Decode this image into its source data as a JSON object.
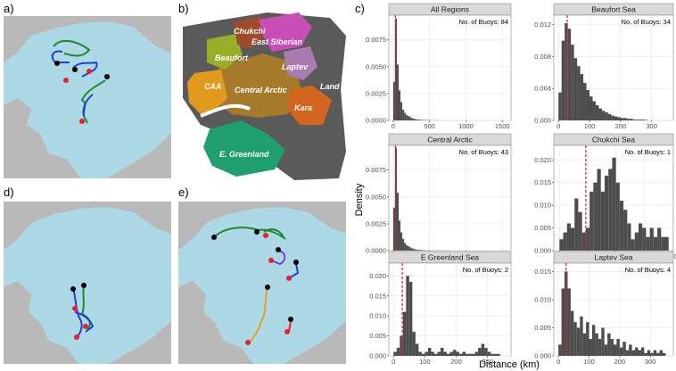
{
  "panel_labels": {
    "a": "a)",
    "b": "b)",
    "c": "c)",
    "d": "d)",
    "e": "e)"
  },
  "region_map": {
    "labels": {
      "chukchi": "Chukchi",
      "east_siberian": "East Siberian",
      "beaufort": "Beaufort",
      "laptev": "Laptev",
      "caa": "CAA",
      "central_arctic": "Central Arctic",
      "land": "Land",
      "kara": "Kara",
      "e_greenland": "E. Greenland"
    },
    "colors": {
      "chukchi": "#a04a2c",
      "east_siberian": "#c84fb5",
      "beaufort": "#9aae2a",
      "laptev": "#a97bb0",
      "caa": "#e09a1e",
      "central_arctic": "#a57a2a",
      "kara": "#d2661e",
      "e_greenland": "#1f9e6e",
      "land": "#5a5a5a"
    }
  },
  "map_colors": {
    "ocean": "#add8e6",
    "land": "#b9b9b9",
    "start": "#000000",
    "end": "#e8202a"
  },
  "track_colors": [
    "#1f3fd6",
    "#1a8a2a",
    "#7b3fd0",
    "#e6a02a"
  ],
  "chart_data": {
    "type": "histogram",
    "xlabel": "Distance (km)",
    "ylabel": "Density",
    "bar_color": "#4d4d4d",
    "median_color": "#e02020",
    "annotation_prefix": "No. of Buoys: ",
    "facets": [
      {
        "title": "All Regions",
        "buoys": 84,
        "xlim": [
          -60,
          1620
        ],
        "xticks": [
          0,
          500,
          1000,
          1500
        ],
        "ylim": [
          0,
          0.0098
        ],
        "yticks": [
          0.0,
          0.0025,
          0.005,
          0.0075
        ],
        "ytick_labels": [
          "0.0000",
          "0.0025",
          "0.0050",
          "0.0075"
        ],
        "median": 30,
        "bin_start": 0,
        "bin_width": 25,
        "density": [
          0.0036,
          0.0095,
          0.0052,
          0.0028,
          0.0017,
          0.001,
          0.0007,
          0.0005,
          0.0004,
          0.0003,
          0.0002,
          0.00015,
          0.0001,
          8e-05,
          6e-05,
          5e-05,
          4e-05,
          3e-05,
          3e-05,
          2e-05,
          2e-05,
          1e-05,
          1e-05,
          1e-05
        ]
      },
      {
        "title": "Beaufort Sea",
        "buoys": 34,
        "xlim": [
          -15,
          370
        ],
        "xticks": [
          0,
          100,
          200,
          300
        ],
        "ylim": [
          0,
          0.0132
        ],
        "yticks": [
          0.0,
          0.004,
          0.008,
          0.012
        ],
        "ytick_labels": [
          "0.000",
          "0.004",
          "0.008",
          "0.012"
        ],
        "median": 28,
        "bin_start": 0,
        "bin_width": 10,
        "density": [
          0.0035,
          0.01,
          0.0122,
          0.0115,
          0.0095,
          0.0078,
          0.0068,
          0.0058,
          0.0047,
          0.0038,
          0.003,
          0.0024,
          0.0019,
          0.0015,
          0.0012,
          0.001,
          0.0008,
          0.0006,
          0.0005,
          0.0004,
          0.0003,
          0.0003,
          0.0002,
          0.0002,
          0.0001,
          0.0001,
          0.0001,
          0.0001,
          5e-05
        ]
      },
      {
        "title": "Central Arctic",
        "buoys": 43,
        "xlim": [
          -60,
          1620
        ],
        "xticks": [
          0,
          500,
          1000,
          1500
        ],
        "ylim": [
          0,
          0.0098
        ],
        "yticks": [
          0.0,
          0.0025,
          0.005,
          0.0075
        ],
        "ytick_labels": [
          "0.0000",
          "0.0025",
          "0.0050",
          "0.0075"
        ],
        "median": 30,
        "bin_start": 0,
        "bin_width": 25,
        "density": [
          0.004,
          0.0096,
          0.0054,
          0.0028,
          0.0017,
          0.0011,
          0.0007,
          0.0005,
          0.0004,
          0.0003,
          0.0002,
          0.00015,
          0.0001,
          8e-05,
          6e-05,
          5e-05,
          4e-05,
          3e-05,
          2e-05,
          2e-05,
          1e-05,
          1e-05,
          1e-05,
          1e-05,
          1e-05,
          1e-05,
          1e-05,
          1e-05,
          1e-05,
          1e-05,
          1e-05,
          1e-05
        ]
      },
      {
        "title": "Chukchi Sea",
        "buoys": 1,
        "xlim": [
          -6,
          121
        ],
        "xticks": [
          0,
          30,
          60,
          90,
          120
        ],
        "ylim": [
          0,
          0.0232
        ],
        "yticks": [
          0.0,
          0.005,
          0.01,
          0.015,
          0.02
        ],
        "ytick_labels": [
          "0.000",
          "0.005",
          "0.010",
          "0.015",
          "0.020"
        ],
        "median": 28,
        "bin_start": 0,
        "bin_width": 4,
        "density": [
          0.0025,
          0.004,
          0.006,
          0.005,
          0.0115,
          0.0085,
          0.004,
          0.005,
          0.013,
          0.015,
          0.018,
          0.013,
          0.0165,
          0.018,
          0.0205,
          0.015,
          0.011,
          0.009,
          0.006,
          0.0025,
          0.004,
          0.006,
          0.005,
          0.003,
          0.005,
          0.003,
          0.005,
          0.003,
          0.003
        ]
      },
      {
        "title": "E Greenland Sea",
        "buoys": 2,
        "xlim": [
          -15,
          375
        ],
        "xticks": [
          0,
          100,
          200,
          300
        ],
        "ylim": [
          0,
          0.0232
        ],
        "yticks": [
          0.0,
          0.005,
          0.01,
          0.015,
          0.02
        ],
        "ytick_labels": [
          "0.000",
          "0.005",
          "0.010",
          "0.015",
          "0.020"
        ],
        "median": 28,
        "bin_start": 0,
        "bin_width": 10,
        "density": [
          0.001,
          0.002,
          0.005,
          0.011,
          0.02,
          0.0185,
          0.006,
          0.003,
          0.001,
          0.0005,
          0.001,
          0.002,
          0.001,
          0.0005,
          0.001,
          0.002,
          0.001,
          0.0005,
          0.001,
          0.0015,
          0.001,
          0.0005,
          0.001,
          0.0005,
          0.0005,
          0.0005,
          0.001,
          0.002,
          0.003,
          0.002,
          0.001,
          0.0005,
          0.0005,
          0.0005
        ]
      },
      {
        "title": "Laptev Sea",
        "buoys": 4,
        "xlim": [
          -15,
          375
        ],
        "xticks": [
          0,
          100,
          200,
          300
        ],
        "ylim": [
          0,
          0.0165
        ],
        "yticks": [
          0.0,
          0.005,
          0.01,
          0.015
        ],
        "ytick_labels": [
          "0.000",
          "0.005",
          "0.010",
          "0.015"
        ],
        "median": 25,
        "bin_start": 0,
        "bin_width": 10,
        "density": [
          0.002,
          0.012,
          0.015,
          0.012,
          0.008,
          0.006,
          0.005,
          0.007,
          0.004,
          0.006,
          0.003,
          0.0055,
          0.004,
          0.003,
          0.005,
          0.002,
          0.004,
          0.003,
          0.002,
          0.003,
          0.0015,
          0.0025,
          0.001,
          0.002,
          0.001,
          0.0015,
          0.001,
          0.0015,
          0.0005,
          0.001,
          0.0005,
          0.001,
          0.0005,
          0.001,
          0.0005
        ]
      }
    ]
  }
}
